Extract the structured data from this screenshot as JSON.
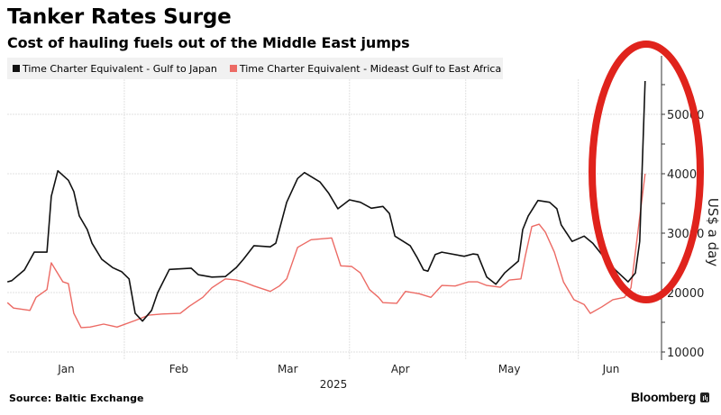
{
  "header": {
    "title": "Tanker Rates Surge",
    "subtitle": "Cost of hauling fuels out of the Middle East jumps"
  },
  "footer": {
    "source": "Source: Baltic Exchange",
    "brand": "Bloomberg"
  },
  "colors": {
    "series_japan": "#111111",
    "series_africa": "#ec6a64",
    "annotation": "#e0231c",
    "grid": "#e1e1e1",
    "legend_bg": "#f1f1f1"
  },
  "chart_data": {
    "type": "line",
    "title": "Tanker Rates Surge",
    "subtitle": "Cost of hauling fuels out of the Middle East jumps",
    "xlabel": "2025",
    "ylabel": "US$ a day",
    "x_unit": "day of year 2025 (Jan 1 = 1)",
    "xlim": [
      -1,
      180
    ],
    "ylim": [
      8000,
      58000
    ],
    "y_ticks": [
      10000,
      20000,
      30000,
      40000,
      50000
    ],
    "y_tick_labels": [
      "10000",
      "20000",
      "30000",
      "40000",
      "50000"
    ],
    "x_ticks": [
      {
        "label": "Jan",
        "day": 16
      },
      {
        "label": "Feb",
        "day": 47
      },
      {
        "label": "Mar",
        "day": 77
      },
      {
        "label": "Apr",
        "day": 108
      },
      {
        "label": "May",
        "day": 138
      },
      {
        "label": "Jun",
        "day": 166
      }
    ],
    "month_boundaries": [
      32,
      63,
      94,
      126,
      157
    ],
    "grid": true,
    "legend_position": "top-left",
    "annotation": "red ellipse circling the June surge",
    "series": [
      {
        "name": "Time Charter Equivalent - Gulf to Japan",
        "color": "#111111",
        "x": [
          -0.2,
          1,
          4.5,
          7.2,
          10.7,
          11.9,
          13.7,
          16.6,
          18.1,
          19.6,
          21.8,
          23.1,
          25.8,
          28.8,
          31.3,
          33.3,
          35,
          37,
          39.5,
          41.2,
          44.4,
          50.4,
          52.4,
          56.1,
          59.8,
          62.8,
          64.8,
          67.7,
          72.2,
          73.7,
          76.7,
          79.7,
          81.6,
          85.9,
          88.3,
          90.8,
          94,
          97,
          100,
          103.2,
          105,
          106.5,
          110.7,
          112.7,
          114.4,
          115.6,
          117.6,
          119.4,
          125.6,
          128,
          129.3,
          131.8,
          134.3,
          136.7,
          140.5,
          141.7,
          143.2,
          145.9,
          149.1,
          151.1,
          152.3,
          155.3,
          158.6,
          161,
          164.5,
          167.2,
          170.7,
          172.7,
          173.9,
          175.4
        ],
        "values": [
          21800,
          22000,
          23800,
          26800,
          26800,
          36200,
          40500,
          38900,
          37000,
          32900,
          30600,
          28300,
          25600,
          24200,
          23500,
          22300,
          16500,
          15200,
          17000,
          20000,
          23900,
          24100,
          23000,
          22600,
          22700,
          24200,
          25600,
          27900,
          27700,
          28300,
          35200,
          39200,
          40200,
          38600,
          36700,
          34100,
          35600,
          35200,
          34200,
          34500,
          33300,
          29500,
          27900,
          25800,
          23800,
          23600,
          26400,
          26800,
          26100,
          26500,
          26400,
          22600,
          21400,
          23300,
          25300,
          30600,
          32900,
          35500,
          35200,
          34100,
          31400,
          28600,
          29500,
          28300,
          25600,
          23800,
          21800,
          23300,
          28600,
          55600
        ]
      },
      {
        "name": "Time Charter Equivalent - Mideast Gulf to East Africa",
        "color": "#ec6a64",
        "x": [
          -0.2,
          1.5,
          6,
          7.7,
          10.7,
          11.9,
          13.9,
          15.1,
          16.6,
          18.1,
          20.1,
          22.6,
          26.3,
          30,
          35,
          38.7,
          42.4,
          47.4,
          49.9,
          53.6,
          56.1,
          59.8,
          62.8,
          64.8,
          67.7,
          72.2,
          74.7,
          76.7,
          79.7,
          83.4,
          89.1,
          91.6,
          94.6,
          97,
          99.5,
          102,
          103.2,
          107,
          109.4,
          113.2,
          116.4,
          119.4,
          123.1,
          126.8,
          129.3,
          131.8,
          135.5,
          138,
          141.2,
          142.4,
          144.2,
          146.2,
          147.9,
          150.4,
          152.9,
          155.8,
          158.6,
          160.3,
          163.5,
          166.5,
          169.7,
          171.5,
          175.4
        ],
        "values": [
          18300,
          17400,
          17000,
          19200,
          20500,
          25000,
          23000,
          21800,
          21500,
          16500,
          14100,
          14200,
          14700,
          14200,
          15300,
          16200,
          16400,
          16500,
          17700,
          19200,
          20800,
          22300,
          22100,
          21800,
          21100,
          20200,
          21100,
          22300,
          27600,
          28900,
          29200,
          24500,
          24400,
          23300,
          20500,
          19200,
          18300,
          18200,
          20200,
          19800,
          19200,
          21200,
          21100,
          21800,
          21800,
          21200,
          20900,
          22100,
          22300,
          26100,
          31100,
          31500,
          30200,
          26800,
          21800,
          18800,
          18000,
          16500,
          17600,
          18800,
          19200,
          20800,
          40000
        ]
      }
    ]
  }
}
